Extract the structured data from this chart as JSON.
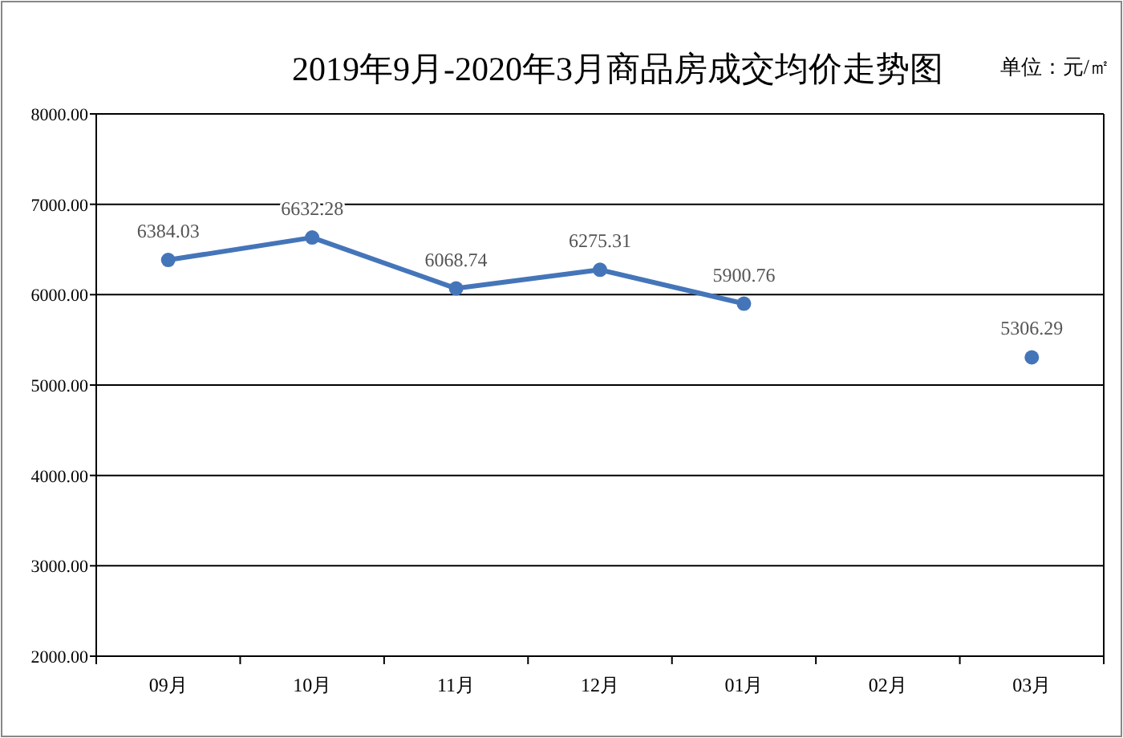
{
  "chart_data": {
    "type": "line",
    "title": "2019年9月-2020年3月商品房成交均价走势图",
    "annotations": [
      "单位：元/㎡"
    ],
    "categories": [
      "09月",
      "10月",
      "11月",
      "12月",
      "01月",
      "02月",
      "03月"
    ],
    "series": [
      {
        "color": "#4575b9",
        "values": [
          6384.03,
          6632.28,
          6068.74,
          6275.31,
          5900.76,
          null,
          5306.29
        ],
        "value_labels": [
          "6384.03",
          "6632.28",
          "6068.74",
          "6275.31",
          "5900.76",
          null,
          "5306.29"
        ]
      }
    ],
    "ylim": [
      2000,
      8000
    ],
    "yticks": [
      {
        "value": 2000,
        "label": "2000.00"
      },
      {
        "value": 3000,
        "label": "3000.00"
      },
      {
        "value": 4000,
        "label": "4000.00"
      },
      {
        "value": 5000,
        "label": "5000.00"
      },
      {
        "value": 6000,
        "label": "6000.00"
      },
      {
        "value": 7000,
        "label": "7000.00"
      },
      {
        "value": 8000,
        "label": "8000.00"
      }
    ],
    "grid": "y",
    "marker": "circle",
    "line_style": "solid"
  }
}
